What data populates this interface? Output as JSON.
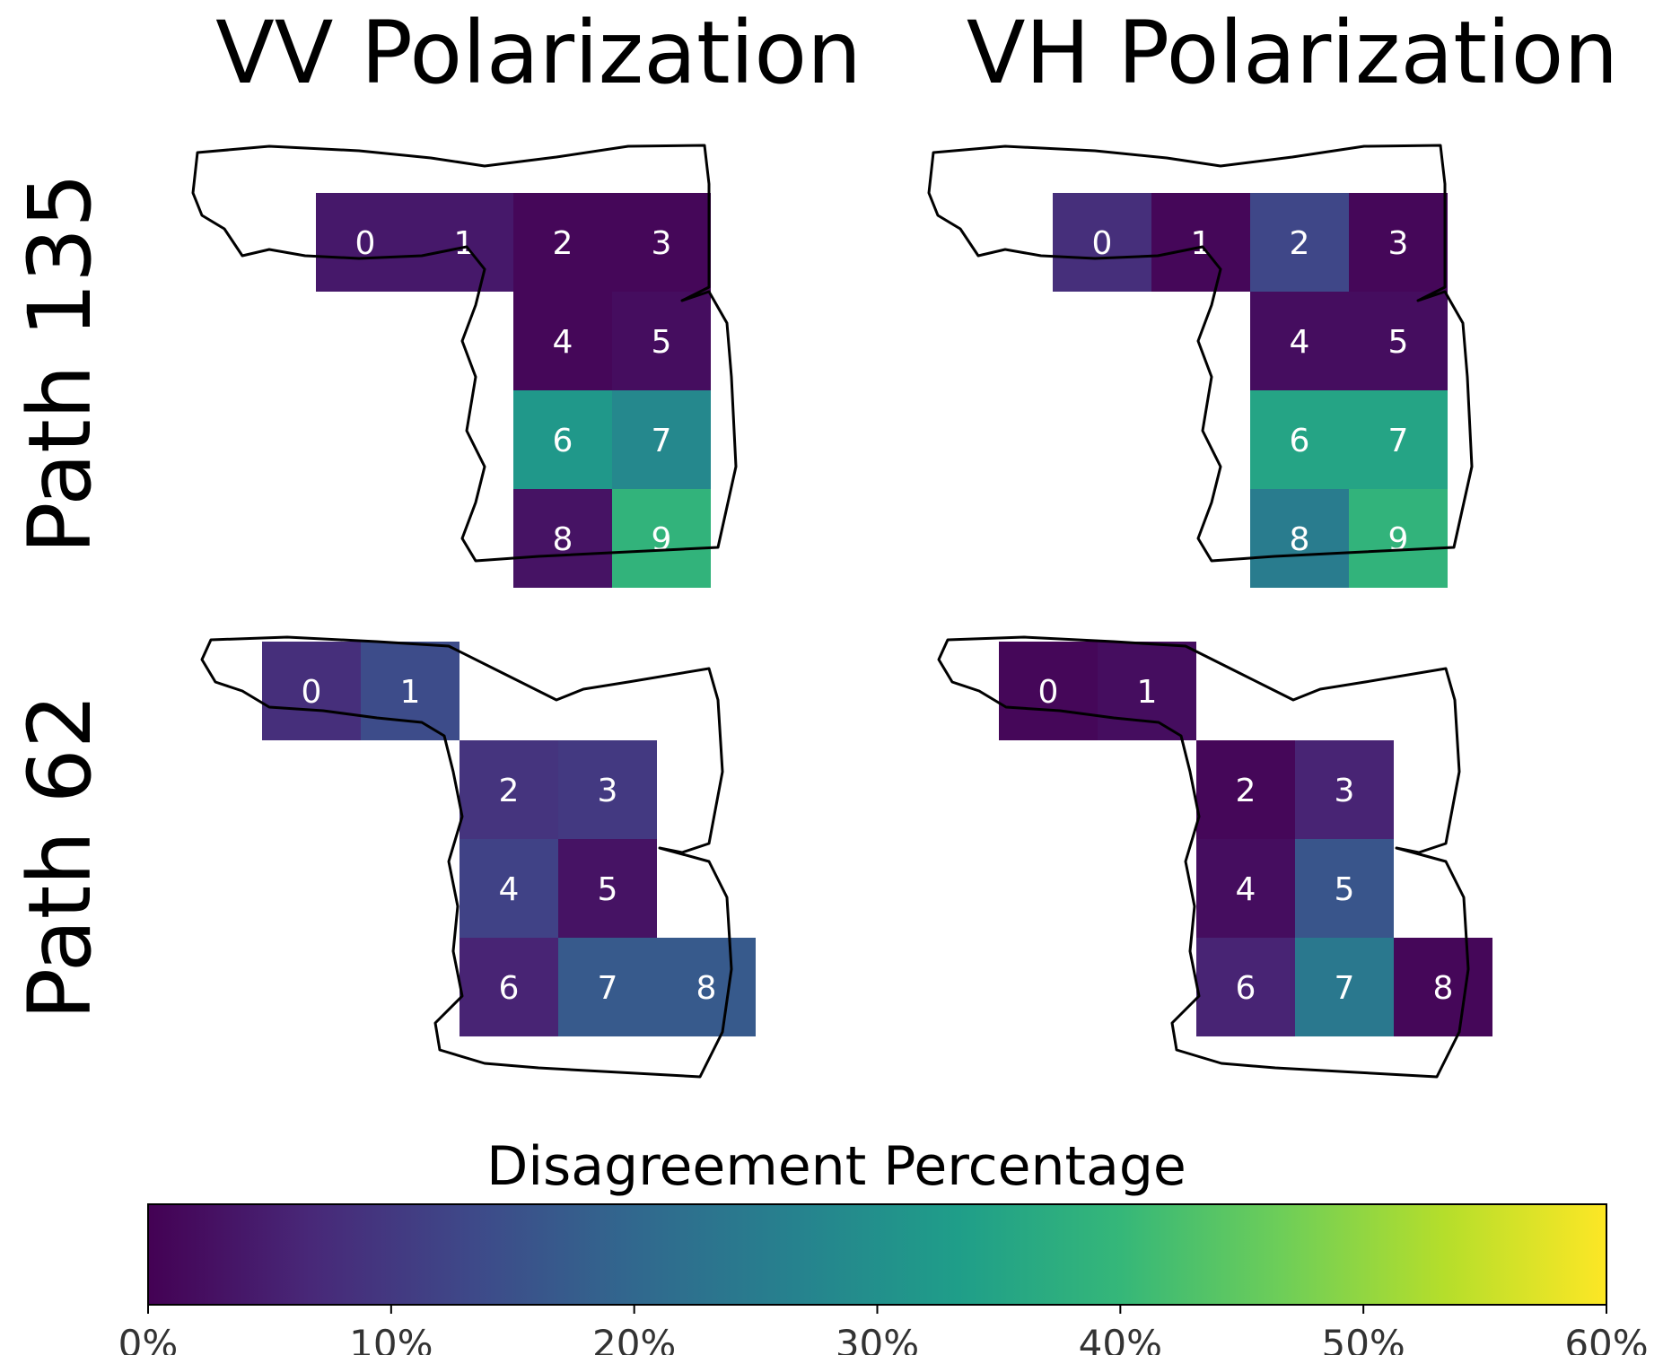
{
  "chart_data": {
    "type": "heatmap",
    "column_titles": [
      "VV Polarization",
      "VH Polarization"
    ],
    "row_titles": [
      "Path 135",
      "Path 62"
    ],
    "panels": [
      {
        "row": "Path 135",
        "column": "VV Polarization",
        "cells": [
          {
            "label": "0",
            "value": 4
          },
          {
            "label": "1",
            "value": 4
          },
          {
            "label": "2",
            "value": 1
          },
          {
            "label": "3",
            "value": 1
          },
          {
            "label": "4",
            "value": 1
          },
          {
            "label": "5",
            "value": 2
          },
          {
            "label": "6",
            "value": 32
          },
          {
            "label": "7",
            "value": 28
          },
          {
            "label": "8",
            "value": 3
          },
          {
            "label": "9",
            "value": 39
          }
        ]
      },
      {
        "row": "Path 135",
        "column": "VH Polarization",
        "cells": [
          {
            "label": "0",
            "value": 8
          },
          {
            "label": "1",
            "value": 1
          },
          {
            "label": "2",
            "value": 13
          },
          {
            "label": "3",
            "value": 1
          },
          {
            "label": "4",
            "value": 2
          },
          {
            "label": "5",
            "value": 2
          },
          {
            "label": "6",
            "value": 35
          },
          {
            "label": "7",
            "value": 35
          },
          {
            "label": "8",
            "value": 25
          },
          {
            "label": "9",
            "value": 39
          }
        ]
      },
      {
        "row": "Path 62",
        "column": "VV Polarization",
        "cells": [
          {
            "label": "0",
            "value": 8
          },
          {
            "label": "1",
            "value": 14
          },
          {
            "label": "2",
            "value": 9
          },
          {
            "label": "3",
            "value": 10
          },
          {
            "label": "4",
            "value": 12
          },
          {
            "label": "5",
            "value": 3
          },
          {
            "label": "6",
            "value": 6
          },
          {
            "label": "7",
            "value": 17
          },
          {
            "label": "8",
            "value": 17
          }
        ]
      },
      {
        "row": "Path 62",
        "column": "VH Polarization",
        "cells": [
          {
            "label": "0",
            "value": 1
          },
          {
            "label": "1",
            "value": 2
          },
          {
            "label": "2",
            "value": 1
          },
          {
            "label": "3",
            "value": 6
          },
          {
            "label": "4",
            "value": 2
          },
          {
            "label": "5",
            "value": 16
          },
          {
            "label": "6",
            "value": 6
          },
          {
            "label": "7",
            "value": 24
          },
          {
            "label": "8",
            "value": 1
          }
        ]
      }
    ],
    "colorbar": {
      "title": "Disagreement Percentage",
      "range": [
        0,
        60
      ],
      "ticks": [
        "0%",
        "10%",
        "20%",
        "30%",
        "40%",
        "50%",
        "60%"
      ],
      "orientation": "horizontal",
      "placement": "bottom",
      "colormap": "viridis"
    }
  },
  "colors": {
    "viridis_stops": [
      "#440154",
      "#482878",
      "#3e4989",
      "#31688e",
      "#26828e",
      "#1f9e89",
      "#35b779",
      "#6ece58",
      "#b5de2b",
      "#fde725"
    ],
    "outline": "#000000",
    "cell_text": "#ffffff"
  }
}
